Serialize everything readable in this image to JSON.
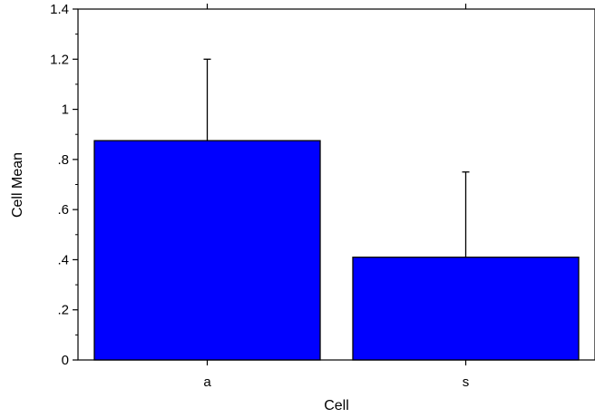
{
  "chart_data": {
    "type": "bar",
    "title": "",
    "xlabel": "Cell",
    "ylabel": "Cell Mean",
    "categories": [
      "a",
      "s"
    ],
    "values": [
      0.875,
      0.41
    ],
    "error_upper": [
      1.2,
      0.75
    ],
    "ylim": [
      0,
      1.4
    ],
    "yticks": [
      0,
      0.2,
      0.4,
      0.6,
      0.8,
      1,
      1.2,
      1.4
    ],
    "ytick_labels": [
      "0",
      ".2",
      ".4",
      ".6",
      ".8",
      "1",
      "1.2",
      "1.4"
    ],
    "bar_color": "#0000ff",
    "grid": false,
    "legend": "none"
  }
}
